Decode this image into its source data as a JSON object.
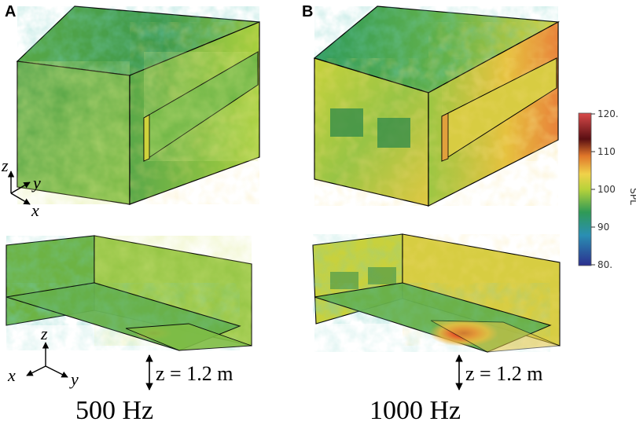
{
  "panels": {
    "a": {
      "letter": "A",
      "frequency": "500 Hz"
    },
    "b": {
      "letter": "B",
      "frequency": "1000 Hz"
    }
  },
  "axes_top": {
    "z": "z",
    "y": "y",
    "x": "x"
  },
  "axes_bottom": {
    "z": "z",
    "x": "x",
    "y": "y"
  },
  "height_label": "z = 1.2 m",
  "colorbar": {
    "title": "SPL",
    "ticks": [
      "120.",
      "110",
      "100",
      "90",
      "80."
    ],
    "colors": [
      "#2b2f8f",
      "#2a8fb3",
      "#2f9a56",
      "#b7d23a",
      "#f0d24a",
      "#e0762a",
      "#5a0f12",
      "#d94a4a"
    ]
  }
}
